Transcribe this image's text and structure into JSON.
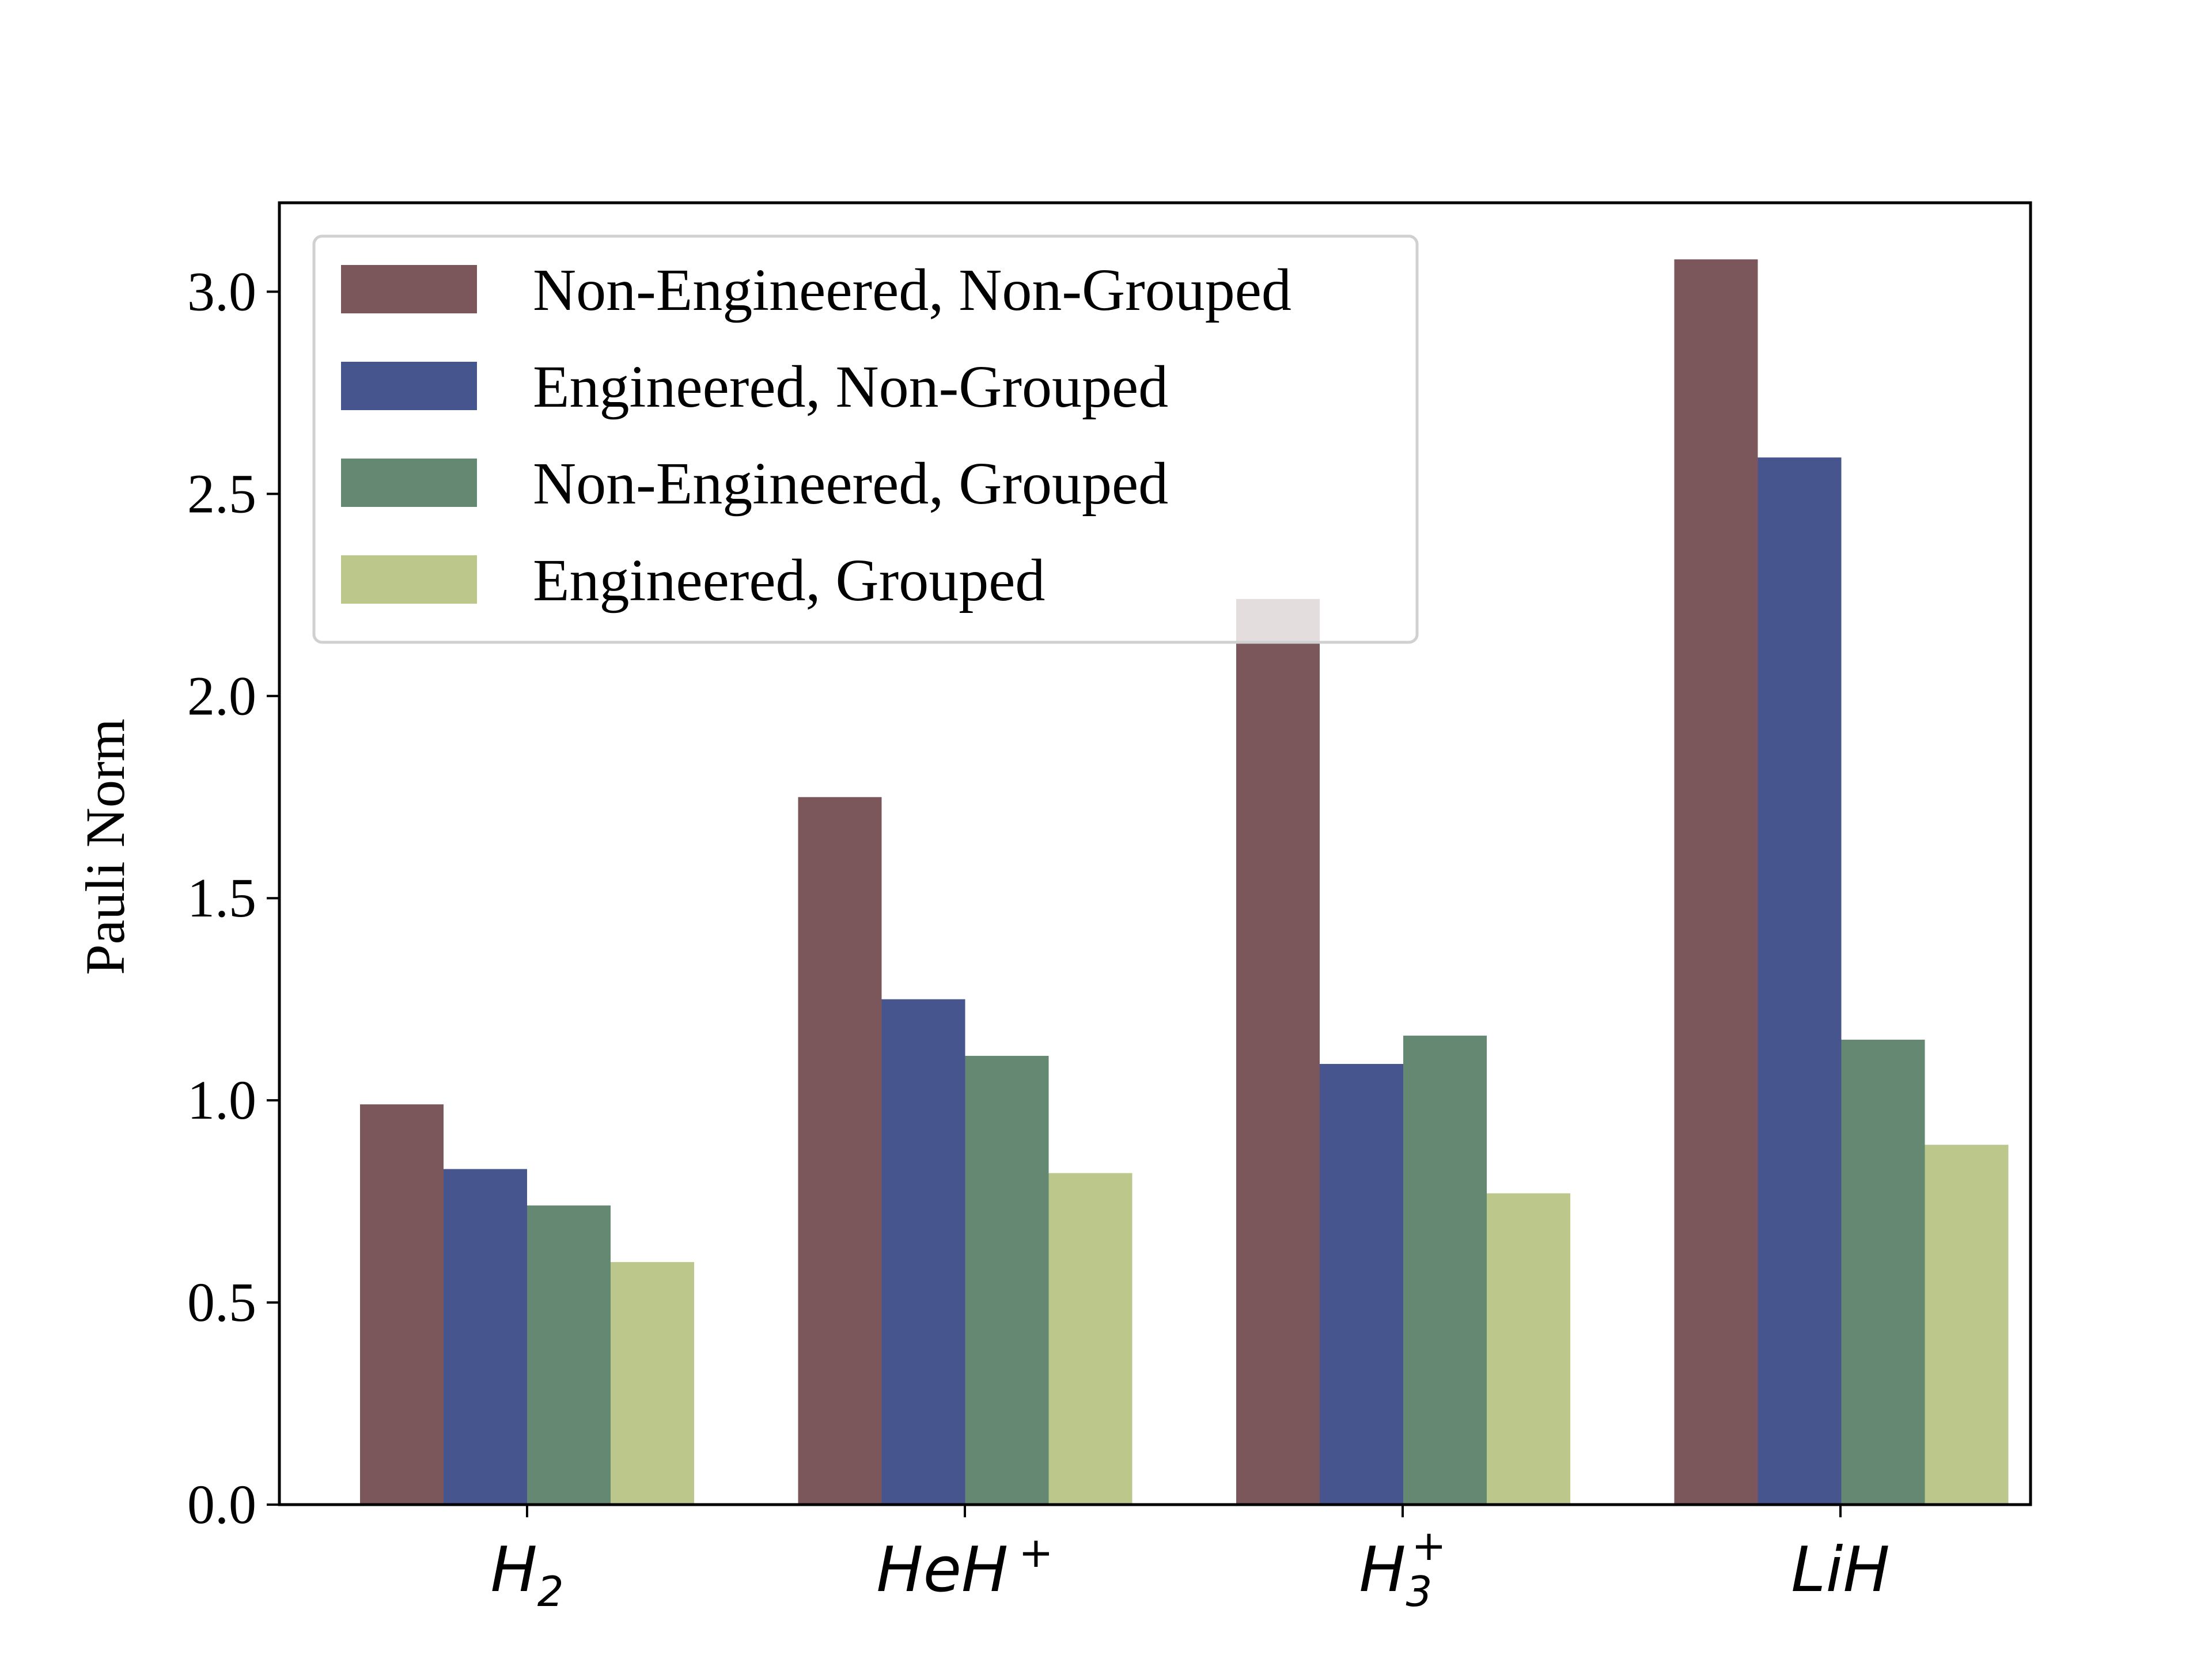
{
  "chart_data": {
    "type": "bar",
    "title": "",
    "xlabel": "",
    "ylabel": "Pauli Norm",
    "ylim": [
      0,
      3.22
    ],
    "yticks": [
      "0.0",
      "0.5",
      "1.0",
      "1.5",
      "2.0",
      "2.5",
      "3.0"
    ],
    "categories": [
      {
        "label": "H",
        "sub": "2",
        "sup": ""
      },
      {
        "label": "HeH",
        "sub": "",
        "sup": "+"
      },
      {
        "label": "H",
        "sub": "3",
        "sup": "+"
      },
      {
        "label": "LiH",
        "sub": "",
        "sup": ""
      }
    ],
    "series": [
      {
        "name": "Non-Engineered, Non-Grouped",
        "color": "#7b575c",
        "values": [
          0.99,
          1.75,
          2.24,
          3.08
        ]
      },
      {
        "name": "Engineered, Non-Grouped",
        "color": "#46558e",
        "values": [
          0.83,
          1.25,
          1.09,
          2.59
        ]
      },
      {
        "name": "Non-Engineered, Grouped",
        "color": "#658873",
        "values": [
          0.74,
          1.11,
          1.16,
          1.15
        ]
      },
      {
        "name": "Engineered, Grouped",
        "color": "#bbc78b",
        "values": [
          0.6,
          0.82,
          0.77,
          0.89
        ]
      }
    ],
    "legend_position": "top-left"
  }
}
